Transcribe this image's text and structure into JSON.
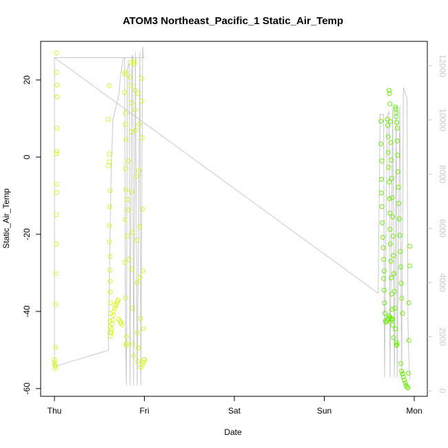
{
  "chart_data": {
    "type": "scatter",
    "title": "ATOM3 Northeast_Pacific_1 Static_Air_Temp",
    "xlabel": "Date",
    "ylabel": "Static_Air_Temp",
    "ylim": [
      -62,
      30
    ],
    "x_unit": "days since Thu 00:00",
    "xlim": [
      -0.03,
      4.0
    ],
    "y_ticks": [
      -60,
      -40,
      -20,
      0,
      20
    ],
    "x_ticks": [
      {
        "label": "Thu",
        "x": 0
      },
      {
        "label": "Fri",
        "x": 1
      },
      {
        "label": "Sat",
        "x": 2
      },
      {
        "label": "Sun",
        "x": 3
      },
      {
        "label": "Mon",
        "x": 4
      }
    ],
    "secondary_axis": {
      "side": "right",
      "ylim": [
        -200,
        12900
      ],
      "ticks": [
        0,
        2000,
        4000,
        6000,
        8000,
        10000,
        12000
      ],
      "color": "#c8c8c8"
    },
    "colors": {
      "scatter_low_time": "#d9f21a",
      "scatter_high_time": "#66ee00",
      "altitude_line": "#c8c8c8"
    },
    "series": [
      {
        "name": "Static_Air_Temp",
        "kind": "scatter",
        "points": [
          [
            0.02,
            27
          ],
          [
            0.025,
            22
          ],
          [
            0.028,
            18.7
          ],
          [
            0.028,
            15.6
          ],
          [
            0.025,
            7.5
          ],
          [
            0.025,
            1.5
          ],
          [
            0.02,
            0.9
          ],
          [
            0.02,
            -7
          ],
          [
            0.025,
            -9.2
          ],
          [
            0.02,
            -15
          ],
          [
            0.02,
            -22.5
          ],
          [
            0.015,
            -30.2
          ],
          [
            0.015,
            -38.2
          ],
          [
            0.015,
            -49.3
          ],
          [
            0.0,
            -52.5
          ],
          [
            0.0,
            -53.2
          ],
          [
            0.0,
            -53.8
          ],
          [
            0.01,
            -54.2
          ],
          [
            0.01,
            -54.8
          ],
          [
            0.61,
            18.5
          ],
          [
            0.6,
            9.8
          ],
          [
            0.61,
            0.8
          ],
          [
            0.61,
            -1.2
          ],
          [
            0.6,
            -2.2
          ],
          [
            0.62,
            -8.7
          ],
          [
            0.615,
            -12.8
          ],
          [
            0.61,
            -17.8
          ],
          [
            0.61,
            -22
          ],
          [
            0.62,
            -25.8
          ],
          [
            0.615,
            -29.3
          ],
          [
            0.62,
            -32.2
          ],
          [
            0.62,
            -35
          ],
          [
            0.625,
            -37.8
          ],
          [
            0.625,
            -40.5
          ],
          [
            0.62,
            -42.5
          ],
          [
            0.62,
            -44
          ],
          [
            0.62,
            -45.5
          ],
          [
            0.62,
            -46.4
          ],
          [
            0.63,
            -45.5
          ],
          [
            0.635,
            -44.5
          ],
          [
            0.64,
            -43.2
          ],
          [
            0.65,
            -42.2
          ],
          [
            0.655,
            -41
          ],
          [
            0.66,
            -40
          ],
          [
            0.67,
            -39.2
          ],
          [
            0.68,
            -38.5
          ],
          [
            0.69,
            -38
          ],
          [
            0.7,
            -37.5
          ],
          [
            0.71,
            -37
          ],
          [
            0.715,
            -42
          ],
          [
            0.73,
            -42.5
          ],
          [
            0.74,
            -43
          ],
          [
            0.75,
            -43.5
          ],
          [
            0.78,
            22
          ],
          [
            0.785,
            21.5
          ],
          [
            0.78,
            16.8
          ],
          [
            0.79,
            11.5
          ],
          [
            0.79,
            8.5
          ],
          [
            0.795,
            4.5
          ],
          [
            0.79,
            -3
          ],
          [
            0.795,
            -8.5
          ],
          [
            0.785,
            -16.2
          ],
          [
            0.785,
            -27.3
          ],
          [
            0.79,
            -36.5
          ],
          [
            0.8,
            -46.5
          ],
          [
            0.8,
            -48.2
          ],
          [
            0.8,
            -48.8
          ],
          [
            0.81,
            -20.5
          ],
          [
            0.81,
            -11
          ],
          [
            0.82,
            -1
          ],
          [
            0.82,
            -13.7
          ],
          [
            0.83,
            -26.5
          ],
          [
            0.84,
            24.5
          ],
          [
            0.84,
            20.7
          ],
          [
            0.85,
            18.5
          ],
          [
            0.855,
            14
          ],
          [
            0.855,
            6.5
          ],
          [
            0.86,
            -9
          ],
          [
            0.865,
            -19.5
          ],
          [
            0.86,
            -29
          ],
          [
            0.87,
            -39.2
          ],
          [
            0.87,
            -48.5
          ],
          [
            0.88,
            -51.5
          ],
          [
            0.89,
            24.8
          ],
          [
            0.89,
            24.2
          ],
          [
            0.9,
            17.3
          ],
          [
            0.9,
            12.3
          ],
          [
            0.905,
            7
          ],
          [
            0.91,
            -5
          ],
          [
            0.915,
            -21.5
          ],
          [
            0.92,
            -32.5
          ],
          [
            0.92,
            -45.5
          ],
          [
            0.925,
            -53
          ],
          [
            0.93,
            -49.5
          ],
          [
            0.93,
            16.5
          ],
          [
            0.94,
            8.5
          ],
          [
            0.94,
            -3.5
          ],
          [
            0.95,
            -18
          ],
          [
            0.95,
            -31.2
          ],
          [
            0.955,
            -41.8
          ],
          [
            0.96,
            -54.5
          ],
          [
            0.97,
            20.5
          ],
          [
            0.97,
            14.5
          ],
          [
            0.975,
            5
          ],
          [
            0.98,
            -13.5
          ],
          [
            0.985,
            -29.5
          ],
          [
            0.99,
            -44.5
          ],
          [
            0.995,
            -52.5
          ],
          [
            1.0,
            -52.5
          ],
          [
            0.99,
            -53.2
          ],
          [
            0.98,
            -53.8
          ]
        ]
      },
      {
        "name": "Static_Air_Temp",
        "kind": "scatter",
        "points": [
          [
            3.63,
            9.3
          ],
          [
            3.63,
            3.4
          ],
          [
            3.64,
            -1
          ],
          [
            3.635,
            -5.8
          ],
          [
            3.635,
            -9.3
          ],
          [
            3.64,
            -12.8
          ],
          [
            3.645,
            -17
          ],
          [
            3.65,
            -20.8
          ],
          [
            3.655,
            -23.5
          ],
          [
            3.66,
            -26.5
          ],
          [
            3.665,
            -29.5
          ],
          [
            3.66,
            -31.5
          ],
          [
            3.665,
            -34.5
          ],
          [
            3.67,
            -37.8
          ],
          [
            3.675,
            -40.5
          ],
          [
            3.68,
            -42.5
          ],
          [
            3.69,
            -42.8
          ],
          [
            3.7,
            -42.3
          ],
          [
            3.71,
            -41.8
          ],
          [
            3.72,
            -41.2
          ],
          [
            3.73,
            -41.5
          ],
          [
            3.74,
            -41.9
          ],
          [
            3.75,
            -42.2
          ],
          [
            3.76,
            -42
          ],
          [
            3.7,
            9.8
          ],
          [
            3.705,
            8.2
          ],
          [
            3.71,
            5.3
          ],
          [
            3.71,
            1.2
          ],
          [
            3.715,
            -2.7
          ],
          [
            3.72,
            -6.5
          ],
          [
            3.725,
            -10.8
          ],
          [
            3.73,
            -14.5
          ],
          [
            3.73,
            -18.7
          ],
          [
            3.735,
            -22.5
          ],
          [
            3.74,
            -27
          ],
          [
            3.745,
            -31.3
          ],
          [
            3.75,
            -35.5
          ],
          [
            3.755,
            -39.5
          ],
          [
            3.76,
            -43.5
          ],
          [
            3.77,
            -46.8
          ],
          [
            3.72,
            17.3
          ],
          [
            3.725,
            16.5
          ],
          [
            3.73,
            13.8
          ],
          [
            3.735,
            9.2
          ],
          [
            3.74,
            3.8
          ],
          [
            3.745,
            -0.8
          ],
          [
            3.75,
            -5.5
          ],
          [
            3.755,
            -10.5
          ],
          [
            3.76,
            -15.5
          ],
          [
            3.765,
            -20.5
          ],
          [
            3.77,
            -25.5
          ],
          [
            3.775,
            -30.2
          ],
          [
            3.78,
            -34.8
          ],
          [
            3.785,
            -39.2
          ],
          [
            3.79,
            -44.5
          ],
          [
            3.8,
            -48.8
          ],
          [
            3.79,
            13
          ],
          [
            3.795,
            12.5
          ],
          [
            3.8,
            11.5
          ],
          [
            3.8,
            10.5
          ],
          [
            3.805,
            9
          ],
          [
            3.81,
            7.5
          ],
          [
            3.81,
            4.2
          ],
          [
            3.815,
            0.5
          ],
          [
            3.82,
            -3.8
          ],
          [
            3.825,
            -7.8
          ],
          [
            3.83,
            -12
          ],
          [
            3.835,
            -16
          ],
          [
            3.84,
            -20.3
          ],
          [
            3.845,
            -24.5
          ],
          [
            3.85,
            -28.5
          ],
          [
            3.855,
            -32.7
          ],
          [
            3.86,
            -36.6
          ],
          [
            3.87,
            -40.5
          ],
          [
            3.8,
            -48
          ],
          [
            3.81,
            -48.5
          ],
          [
            3.85,
            -53.5
          ],
          [
            3.86,
            -55.5
          ],
          [
            3.87,
            -56.2
          ],
          [
            3.88,
            -57
          ],
          [
            3.89,
            -57.8
          ],
          [
            3.9,
            -58.5
          ],
          [
            3.91,
            -59.2
          ],
          [
            3.92,
            -59.6
          ],
          [
            3.93,
            -59.8
          ],
          [
            3.935,
            -56
          ],
          [
            3.94,
            -47.5
          ],
          [
            3.94,
            -37.8
          ],
          [
            3.95,
            -28.2
          ],
          [
            3.95,
            -23.1
          ]
        ]
      }
    ],
    "altitude_line": {
      "name": "altitude",
      "kind": "line",
      "points": [
        [
          0.0,
          12300
        ],
        [
          0.0,
          3000
        ],
        [
          0.0,
          900
        ],
        [
          0.6,
          1500
        ],
        [
          0.6,
          2000
        ],
        [
          0.63,
          8000
        ],
        [
          0.65,
          10000
        ],
        [
          0.7,
          10700
        ],
        [
          0.72,
          11000
        ],
        [
          0.73,
          11500
        ],
        [
          0.76,
          12200
        ],
        [
          0.78,
          12300
        ],
        [
          0.79,
          2000
        ],
        [
          0.8,
          200
        ],
        [
          0.81,
          11900
        ],
        [
          0.83,
          12100
        ],
        [
          0.84,
          200
        ],
        [
          0.86,
          12300
        ],
        [
          0.87,
          12400
        ],
        [
          0.88,
          200
        ],
        [
          0.9,
          12500
        ],
        [
          0.92,
          200
        ],
        [
          0.95,
          12500
        ],
        [
          0.96,
          200
        ],
        [
          0.98,
          12700
        ],
        [
          0.99,
          12300
        ],
        [
          1.0,
          12300
        ],
        [
          0.0,
          12300
        ],
        [
          3.6,
          3600
        ],
        [
          3.62,
          10200
        ],
        [
          3.66,
          10200
        ],
        [
          3.67,
          500
        ],
        [
          3.7,
          10200
        ],
        [
          3.72,
          10300
        ],
        [
          3.73,
          500
        ],
        [
          3.76,
          10400
        ],
        [
          3.78,
          500
        ],
        [
          3.8,
          10500
        ],
        [
          3.81,
          500
        ],
        [
          3.84,
          10500
        ],
        [
          3.86,
          500
        ],
        [
          3.88,
          11200
        ],
        [
          3.9,
          11000
        ],
        [
          3.92,
          10800
        ],
        [
          3.93,
          2500
        ],
        [
          3.94,
          1200
        ],
        [
          3.95,
          400
        ]
      ],
      "segments_order_note": ""
    }
  }
}
